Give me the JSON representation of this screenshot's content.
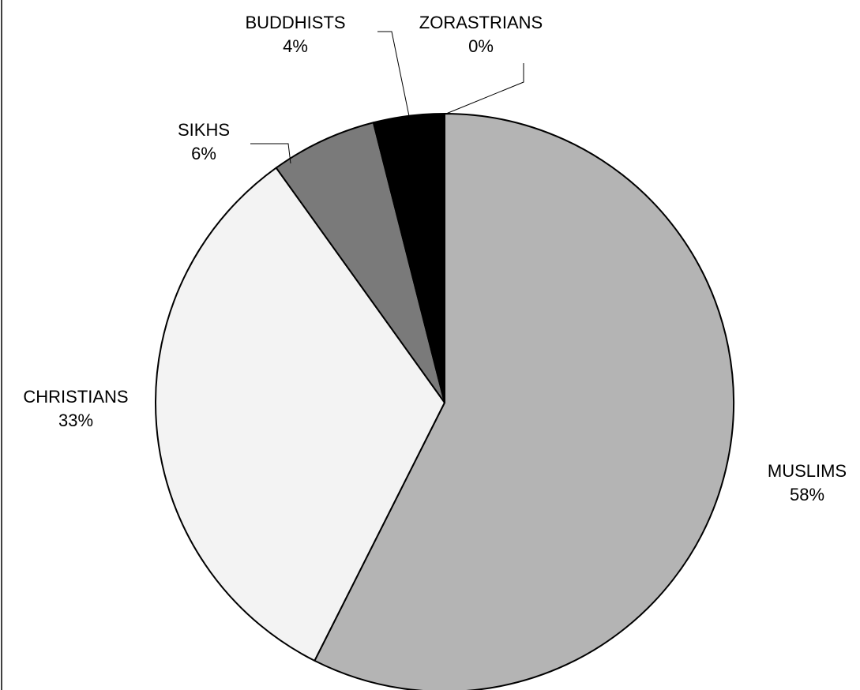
{
  "chart_data": {
    "type": "pie",
    "categories": [
      "MUSLIMS",
      "CHRISTIANS",
      "SIKHS",
      "BUDDHISTS",
      "ZORASTRIANS"
    ],
    "values": [
      58,
      33,
      6,
      4,
      0
    ],
    "value_labels": [
      "58%",
      "33%",
      "6%",
      "4%",
      "0%"
    ],
    "colors": [
      "#b4b4b4",
      "#f3f3f3",
      "#7a7a7a",
      "#000000",
      "#ffffff"
    ]
  }
}
